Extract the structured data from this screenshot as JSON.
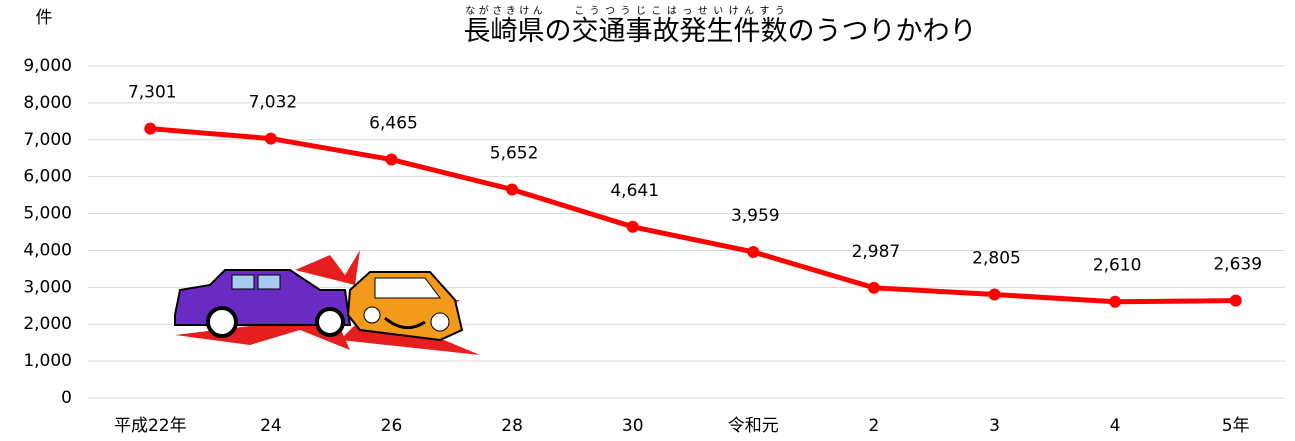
{
  "chart_data": {
    "type": "line",
    "title_parts": [
      {
        "text": "長崎県",
        "ruby": "ながさきけん"
      },
      {
        "text": "の"
      },
      {
        "text": "交通事故発生件数",
        "ruby": "こうつうじこはっせいけんすう"
      },
      {
        "text": "のうつりかわり"
      }
    ],
    "y_label": "件",
    "categories": [
      "平成22年",
      "24",
      "26",
      "28",
      "30",
      "令和元",
      "2",
      "3",
      "4",
      "5年"
    ],
    "series": [
      {
        "color": "#ff0000",
        "values": [
          7301,
          7032,
          6465,
          5652,
          4641,
          3959,
          2987,
          2805,
          2610,
          2639
        ],
        "value_labels": [
          "7,301",
          "7,032",
          "6,465",
          "5,652",
          "4,641",
          "3,959",
          "2,987",
          "2,805",
          "2,610",
          "2,639"
        ]
      }
    ],
    "ylim": [
      0,
      9000
    ],
    "yticks": [
      0,
      {
        "value": 1000,
        "label": "1,000"
      },
      {
        "value": 2000,
        "label": "2,000"
      },
      {
        "value": 3000,
        "label": "3,000"
      },
      {
        "value": 4000,
        "label": "4,000"
      },
      {
        "value": 5000,
        "label": "5,000"
      },
      {
        "value": 6000,
        "label": "6,000"
      },
      {
        "value": 7000,
        "label": "7,000"
      },
      {
        "value": 8000,
        "label": "8,000"
      },
      {
        "value": 9000,
        "label": "9,000"
      }
    ],
    "grid": true
  }
}
